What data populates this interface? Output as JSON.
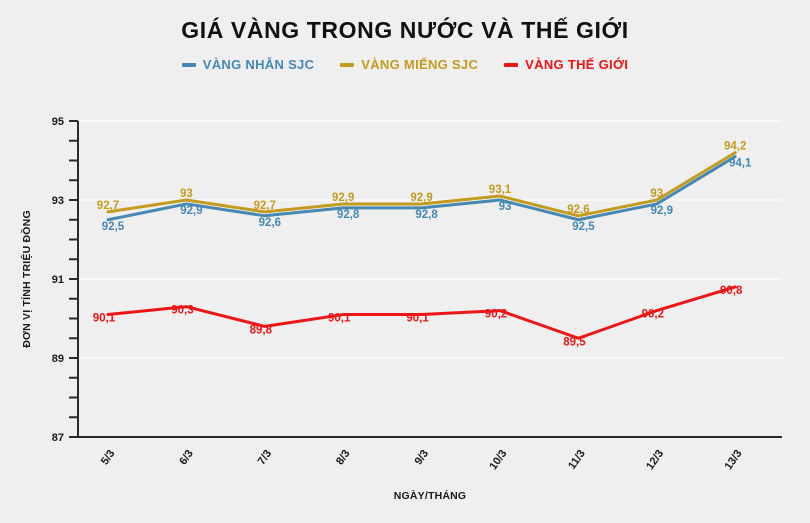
{
  "title": "GIÁ VÀNG TRONG NƯỚC VÀ THẾ GIỚI",
  "legend": [
    {
      "label": "VÀNG NHẪN SJC",
      "color": "#4688b2",
      "marker": "dash-icon"
    },
    {
      "label": "VÀNG MIẾNG SJC",
      "color": "#c39b1e",
      "marker": "dash-icon"
    },
    {
      "label": "VÀNG THẾ GIỚI",
      "color": "#ed1515",
      "marker": "dash-icon"
    }
  ],
  "chart_data": {
    "type": "line",
    "title": "GIÁ VÀNG TRONG NƯỚC VÀ THẾ GIỚI",
    "categories": [
      "5/3",
      "6/3",
      "7/3",
      "8/3",
      "9/3",
      "10/3",
      "11/3",
      "12/3",
      "13/3"
    ],
    "series": [
      {
        "name": "VÀNG NHẪN SJC",
        "color": "#4688b2",
        "values": [
          92.5,
          92.9,
          92.6,
          92.8,
          92.8,
          93,
          92.5,
          92.9,
          94.1
        ],
        "labels": [
          "92,5",
          "92,9",
          "92,6",
          "92,8",
          "92,8",
          "93",
          "92,5",
          "92,9",
          "94,1"
        ],
        "label_side": "below"
      },
      {
        "name": "VÀNG MIẾNG SJC",
        "color": "#c39b1e",
        "values": [
          92.7,
          93,
          92.7,
          92.9,
          92.9,
          93.1,
          92.6,
          93,
          94.2
        ],
        "labels": [
          "92,7",
          "93",
          "92,7",
          "92,9",
          "92,9",
          "93,1",
          "92,6",
          "93",
          "94,2"
        ],
        "label_side": "above"
      },
      {
        "name": "VÀNG THẾ GIỚI",
        "color": "#ed1515",
        "values": [
          90.1,
          90.3,
          89.8,
          90.1,
          90.1,
          90.2,
          89.5,
          90.2,
          90.8
        ],
        "labels": [
          "90,1",
          "90,3",
          "89,8",
          "90,1",
          "90,1",
          "90,2",
          "89,5",
          "90,2",
          "90,8"
        ],
        "label_side": "on"
      }
    ],
    "xlabel": "NGÀY/THÁNG",
    "ylabel": "ĐƠN VỊ TÍNH TRIỆU ĐỒNG",
    "ylim": [
      87,
      95
    ],
    "ytick_major": 2,
    "ytick_minor": 0.5,
    "ytick_labels": [
      "87",
      "89",
      "91",
      "93",
      "95"
    ],
    "grid": "horizontal-major",
    "legend_position": "top"
  }
}
